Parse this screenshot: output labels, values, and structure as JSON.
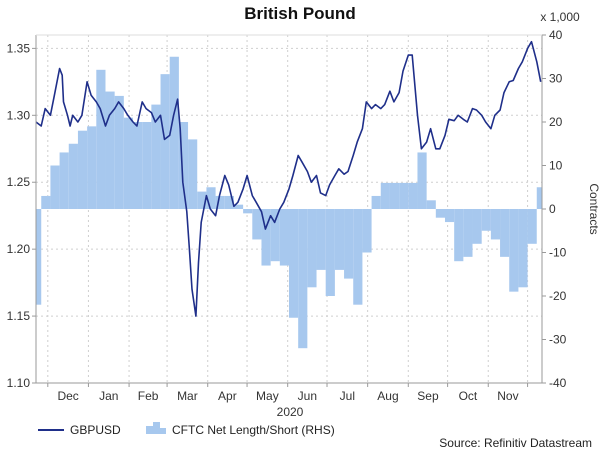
{
  "chart_data": {
    "type": "line+area",
    "title": "British Pound",
    "xlabel": "2020",
    "ylabel_right": "Contracts",
    "right_axis_multiplier": "x 1,000",
    "x_ticks": [
      "Dec",
      "Jan",
      "Feb",
      "Mar",
      "Apr",
      "May",
      "Jun",
      "Jul",
      "Aug",
      "Sep",
      "Oct",
      "Nov"
    ],
    "y_left": {
      "min": 1.1,
      "max": 1.36,
      "ticks": [
        "1.35",
        "1.30",
        "1.25",
        "1.20",
        "1.15",
        "1.10"
      ]
    },
    "y_right": {
      "min": -40,
      "max": 40,
      "ticks": [
        "40",
        "30",
        "20",
        "10",
        "0",
        "-10",
        "-20",
        "-30",
        "-40"
      ]
    },
    "grid": true,
    "legend_position": "bottom-left",
    "source": "Source: Refinitiv Datastream",
    "colors": {
      "line": "#1f2f8a",
      "area": "#a7c8ee",
      "area_edge": "#8fb6e4"
    },
    "series": [
      {
        "name": "GBPUSD",
        "axis": "left",
        "style": "line",
        "x": [
          "2019-11-22",
          "2019-11-26",
          "2019-11-29",
          "2019-12-03",
          "2019-12-06",
          "2019-12-10",
          "2019-12-12",
          "2019-12-13",
          "2019-12-16",
          "2019-12-18",
          "2019-12-20",
          "2019-12-24",
          "2019-12-27",
          "2019-12-31",
          "2020-01-03",
          "2020-01-07",
          "2020-01-10",
          "2020-01-14",
          "2020-01-17",
          "2020-01-21",
          "2020-01-24",
          "2020-01-28",
          "2020-01-31",
          "2020-02-04",
          "2020-02-07",
          "2020-02-11",
          "2020-02-14",
          "2020-02-18",
          "2020-02-21",
          "2020-02-25",
          "2020-02-28",
          "2020-03-03",
          "2020-03-06",
          "2020-03-09",
          "2020-03-11",
          "2020-03-13",
          "2020-03-16",
          "2020-03-18",
          "2020-03-20",
          "2020-03-23",
          "2020-03-25",
          "2020-03-27",
          "2020-03-31",
          "2020-04-03",
          "2020-04-07",
          "2020-04-10",
          "2020-04-14",
          "2020-04-17",
          "2020-04-21",
          "2020-04-24",
          "2020-04-28",
          "2020-05-01",
          "2020-05-05",
          "2020-05-08",
          "2020-05-12",
          "2020-05-15",
          "2020-05-19",
          "2020-05-22",
          "2020-05-26",
          "2020-05-29",
          "2020-06-02",
          "2020-06-05",
          "2020-06-09",
          "2020-06-12",
          "2020-06-16",
          "2020-06-19",
          "2020-06-23",
          "2020-06-26",
          "2020-06-30",
          "2020-07-03",
          "2020-07-07",
          "2020-07-10",
          "2020-07-14",
          "2020-07-17",
          "2020-07-21",
          "2020-07-24",
          "2020-07-28",
          "2020-07-31",
          "2020-08-04",
          "2020-08-07",
          "2020-08-11",
          "2020-08-14",
          "2020-08-18",
          "2020-08-21",
          "2020-08-25",
          "2020-08-28",
          "2020-09-01",
          "2020-09-04",
          "2020-09-08",
          "2020-09-11",
          "2020-09-15",
          "2020-09-18",
          "2020-09-22",
          "2020-09-25",
          "2020-09-29",
          "2020-10-02",
          "2020-10-06",
          "2020-10-09",
          "2020-10-13",
          "2020-10-16",
          "2020-10-20",
          "2020-10-23",
          "2020-10-27",
          "2020-10-30",
          "2020-11-03",
          "2020-11-06",
          "2020-11-10",
          "2020-11-13",
          "2020-11-17",
          "2020-11-20",
          "2020-11-24",
          "2020-11-27",
          "2020-12-01",
          "2020-12-04",
          "2020-12-08",
          "2020-12-11"
        ],
        "values": [
          1.295,
          1.292,
          1.305,
          1.3,
          1.315,
          1.335,
          1.33,
          1.31,
          1.3,
          1.292,
          1.3,
          1.295,
          1.3,
          1.325,
          1.315,
          1.31,
          1.305,
          1.292,
          1.3,
          1.305,
          1.31,
          1.305,
          1.3,
          1.295,
          1.292,
          1.31,
          1.305,
          1.302,
          1.295,
          1.3,
          1.282,
          1.285,
          1.3,
          1.312,
          1.29,
          1.25,
          1.228,
          1.2,
          1.17,
          1.15,
          1.19,
          1.22,
          1.24,
          1.23,
          1.225,
          1.24,
          1.255,
          1.248,
          1.232,
          1.235,
          1.245,
          1.255,
          1.24,
          1.235,
          1.228,
          1.215,
          1.225,
          1.22,
          1.23,
          1.235,
          1.245,
          1.255,
          1.27,
          1.265,
          1.258,
          1.25,
          1.255,
          1.242,
          1.24,
          1.248,
          1.255,
          1.26,
          1.256,
          1.258,
          1.27,
          1.28,
          1.29,
          1.31,
          1.305,
          1.308,
          1.305,
          1.308,
          1.318,
          1.31,
          1.317,
          1.333,
          1.345,
          1.345,
          1.3,
          1.275,
          1.28,
          1.29,
          1.275,
          1.275,
          1.285,
          1.297,
          1.296,
          1.3,
          1.297,
          1.295,
          1.305,
          1.304,
          1.3,
          1.295,
          1.29,
          1.3,
          1.304,
          1.317,
          1.325,
          1.326,
          1.335,
          1.34,
          1.35,
          1.355,
          1.34,
          1.325
        ]
      },
      {
        "name": "CFTC Net Length/Short (RHS)",
        "axis": "right",
        "style": "step-area",
        "x": [
          "2019-11-22",
          "2019-11-26",
          "2019-12-03",
          "2019-12-10",
          "2019-12-17",
          "2019-12-24",
          "2019-12-31",
          "2020-01-07",
          "2020-01-14",
          "2020-01-21",
          "2020-01-28",
          "2020-02-04",
          "2020-02-11",
          "2020-02-18",
          "2020-02-25",
          "2020-03-03",
          "2020-03-10",
          "2020-03-17",
          "2020-03-24",
          "2020-03-31",
          "2020-04-07",
          "2020-04-14",
          "2020-04-21",
          "2020-04-28",
          "2020-05-05",
          "2020-05-12",
          "2020-05-19",
          "2020-05-26",
          "2020-06-02",
          "2020-06-09",
          "2020-06-16",
          "2020-06-23",
          "2020-06-30",
          "2020-07-07",
          "2020-07-14",
          "2020-07-21",
          "2020-07-28",
          "2020-08-04",
          "2020-08-11",
          "2020-08-18",
          "2020-08-25",
          "2020-09-01",
          "2020-09-08",
          "2020-09-15",
          "2020-09-22",
          "2020-09-29",
          "2020-10-06",
          "2020-10-13",
          "2020-10-20",
          "2020-10-27",
          "2020-11-03",
          "2020-11-10",
          "2020-11-17",
          "2020-11-24",
          "2020-12-01",
          "2020-12-08"
        ],
        "values": [
          -22,
          3,
          10,
          13,
          15,
          18,
          19,
          32,
          27,
          26,
          21,
          20,
          20,
          24,
          31,
          35,
          20,
          16,
          4,
          5,
          3,
          3,
          1,
          -1,
          -7,
          -13,
          -12,
          -13,
          -25,
          -32,
          -18,
          -14,
          -20,
          -14,
          -16,
          -22,
          -10,
          3,
          6,
          6,
          6,
          6,
          13,
          2,
          -2,
          -3,
          -12,
          -11,
          -8,
          -5,
          -7,
          -11,
          -19,
          -18,
          -8,
          5
        ]
      }
    ]
  }
}
